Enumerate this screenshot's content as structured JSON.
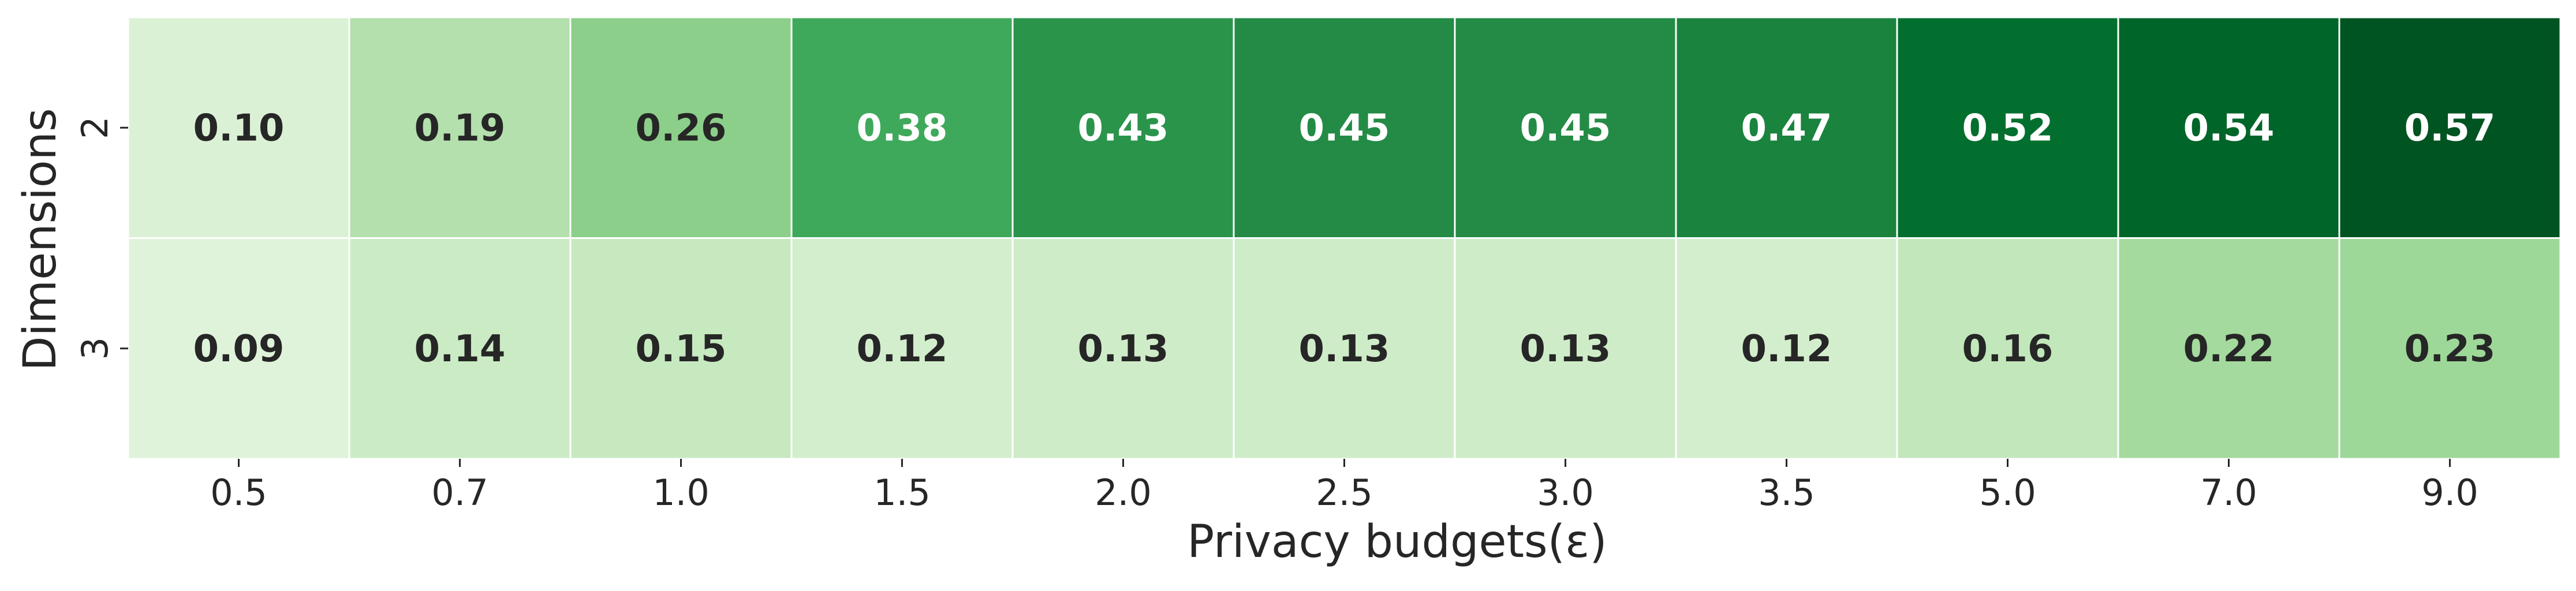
{
  "chart_data": {
    "type": "heatmap",
    "title": "",
    "xlabel": "Privacy budgets(ε)",
    "ylabel": "Dimensions",
    "x_categories": [
      "0.5",
      "0.7",
      "1.0",
      "1.5",
      "2.0",
      "2.5",
      "3.0",
      "3.5",
      "5.0",
      "7.0",
      "9.0"
    ],
    "y_categories": [
      "2",
      "3"
    ],
    "values": [
      [
        0.1,
        0.19,
        0.26,
        0.38,
        0.43,
        0.45,
        0.45,
        0.47,
        0.52,
        0.54,
        0.57
      ],
      [
        0.09,
        0.14,
        0.15,
        0.12,
        0.13,
        0.13,
        0.13,
        0.12,
        0.16,
        0.22,
        0.23
      ]
    ],
    "cell_labels": [
      [
        "0.10",
        "0.19",
        "0.26",
        "0.38",
        "0.43",
        "0.45",
        "0.45",
        "0.47",
        "0.52",
        "0.54",
        "0.57"
      ],
      [
        "0.09",
        "0.14",
        "0.15",
        "0.12",
        "0.13",
        "0.13",
        "0.13",
        "0.12",
        "0.16",
        "0.22",
        "0.23"
      ]
    ],
    "colormap": "Greens",
    "value_range": [
      0.0,
      0.6
    ],
    "colors": {
      "low": "#f7fcf5",
      "high": "#00441b",
      "text_dark": "#262626",
      "text_light": "#ffffff",
      "grid": "#ffffff"
    },
    "grid": false,
    "legend": "none"
  }
}
